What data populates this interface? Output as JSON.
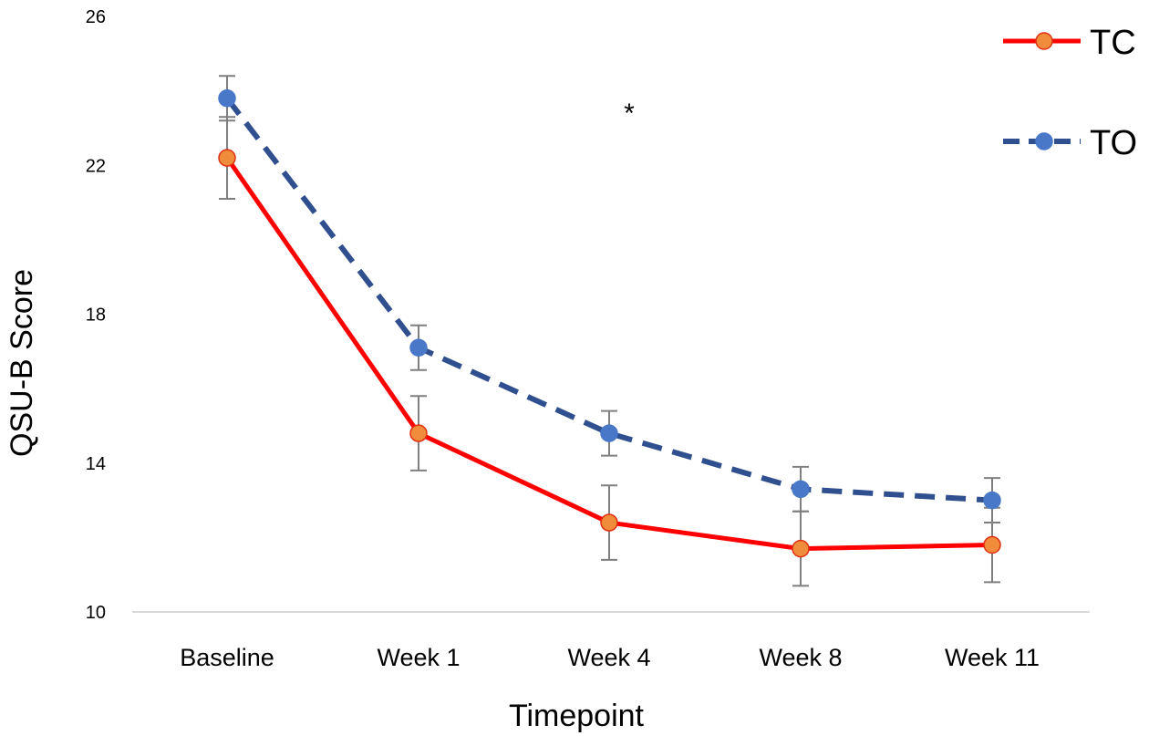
{
  "chart_data": {
    "type": "line",
    "xlabel": "Timepoint",
    "ylabel": "QSU-B Score",
    "ylim": [
      10,
      26
    ],
    "yticks": [
      10,
      14,
      18,
      22,
      26
    ],
    "categories": [
      "Baseline",
      "Week 1",
      "Week 4",
      "Week 8",
      "Week 11"
    ],
    "series": [
      {
        "name": "TC",
        "line_color": "#ff0000",
        "marker_color": "#f08c3c",
        "marker_edge": "#e03010",
        "dash": false,
        "values": [
          22.2,
          14.8,
          12.4,
          11.7,
          11.8
        ],
        "error": [
          1.1,
          1.0,
          1.0,
          1.0,
          1.0
        ]
      },
      {
        "name": "TO",
        "line_color": "#2f4f8f",
        "marker_color": "#4a78c8",
        "marker_edge": "#4a78c8",
        "dash": true,
        "values": [
          23.8,
          17.1,
          14.8,
          13.3,
          13.0
        ],
        "error": [
          0.6,
          0.6,
          0.6,
          0.6,
          0.6
        ]
      }
    ],
    "annotations": [
      {
        "text": "*",
        "category": "Week 4",
        "y": 23.5
      }
    ],
    "legend_position": "top-right",
    "grid": false,
    "colors": {
      "axis_line": "#d9d9d9",
      "error_bar": "#7f7f7f"
    }
  }
}
